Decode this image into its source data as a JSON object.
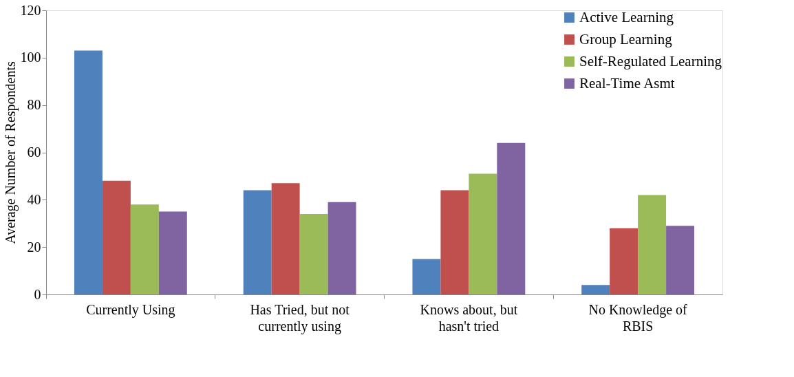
{
  "chart_data": {
    "type": "bar",
    "ylabel": "Average Number of Respondents",
    "categories": [
      "Currently Using",
      "Has Tried, but not\ncurrently using",
      "Knows about, but\nhasn't tried",
      "No Knowledge of\nRBIS"
    ],
    "series": [
      {
        "name": "Active Learning",
        "color": "#4f81bd",
        "values": [
          103,
          44,
          15,
          4
        ]
      },
      {
        "name": "Group Learning",
        "color": "#c0504d",
        "values": [
          48,
          47,
          44,
          28
        ]
      },
      {
        "name": "Self-Regulated Learning",
        "color": "#9bbb59",
        "values": [
          38,
          34,
          51,
          42
        ]
      },
      {
        "name": "Real-Time Asmt",
        "color": "#8064a2",
        "values": [
          35,
          39,
          64,
          29
        ]
      }
    ],
    "ylim": [
      0,
      120
    ],
    "yticks": [
      0,
      20,
      40,
      60,
      80,
      100,
      120
    ],
    "grid": false,
    "legend": "top right"
  }
}
